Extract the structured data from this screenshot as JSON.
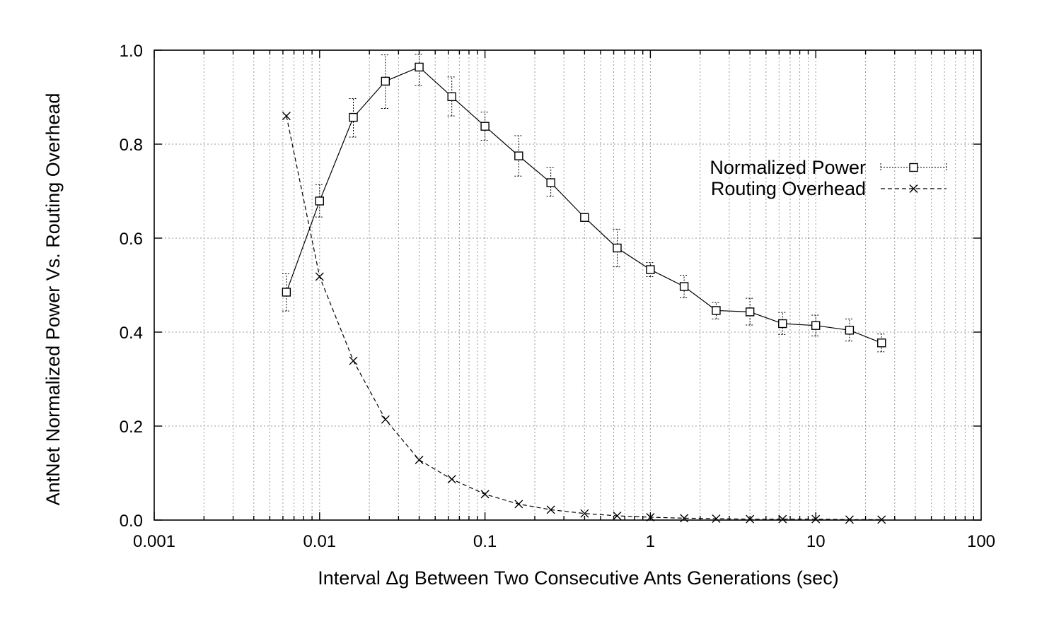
{
  "chart_data": {
    "type": "line",
    "title": "",
    "xlabel": "Interval Δg Between Two Consecutive Ants Generations (sec)",
    "ylabel": "AntNet Normalized Power Vs. Routing Overhead",
    "x_scale": "log",
    "xlim": [
      0.001,
      100
    ],
    "ylim": [
      0.0,
      1.0
    ],
    "x_ticks": [
      0.001,
      0.01,
      0.1,
      1,
      10,
      100
    ],
    "x_tick_labels": [
      "0.001",
      "0.01",
      "0.1",
      "1",
      "10",
      "100"
    ],
    "y_ticks": [
      0.0,
      0.2,
      0.4,
      0.6,
      0.8,
      1.0
    ],
    "y_tick_labels": [
      "0.0",
      "0.2",
      "0.4",
      "0.6",
      "0.8",
      "1.0"
    ],
    "grid": true,
    "legend_position": "top-right",
    "series": [
      {
        "name": "Normalized Power",
        "marker": "square",
        "line": "solid",
        "error_bars": true,
        "x": [
          0.0063,
          0.01,
          0.016,
          0.025,
          0.04,
          0.063,
          0.1,
          0.16,
          0.25,
          0.4,
          0.63,
          1,
          1.6,
          2.5,
          4,
          6.3,
          10,
          16,
          25
        ],
        "y": [
          0.485,
          0.679,
          0.857,
          0.934,
          0.964,
          0.901,
          0.838,
          0.775,
          0.718,
          0.644,
          0.579,
          0.533,
          0.497,
          0.446,
          0.443,
          0.418,
          0.414,
          0.404,
          0.377
        ],
        "err_low": [
          0.445,
          0.645,
          0.815,
          0.876,
          0.925,
          0.86,
          0.808,
          0.732,
          0.689,
          0.637,
          0.539,
          0.518,
          0.473,
          0.428,
          0.415,
          0.395,
          0.392,
          0.381,
          0.358
        ],
        "err_high": [
          0.524,
          0.714,
          0.897,
          0.99,
          0.991,
          0.943,
          0.868,
          0.818,
          0.75,
          0.652,
          0.619,
          0.548,
          0.521,
          0.463,
          0.472,
          0.442,
          0.436,
          0.428,
          0.396
        ]
      },
      {
        "name": "Routing Overhead",
        "marker": "x",
        "line": "dashed",
        "error_bars": false,
        "x": [
          0.0063,
          0.01,
          0.016,
          0.025,
          0.04,
          0.063,
          0.1,
          0.16,
          0.25,
          0.4,
          0.63,
          1,
          1.6,
          2.5,
          4,
          6.3,
          10,
          16,
          25
        ],
        "y": [
          0.86,
          0.518,
          0.339,
          0.214,
          0.128,
          0.087,
          0.055,
          0.034,
          0.022,
          0.014,
          0.009,
          0.006,
          0.004,
          0.003,
          0.002,
          0.002,
          0.002,
          0.001,
          0.001
        ]
      }
    ]
  }
}
